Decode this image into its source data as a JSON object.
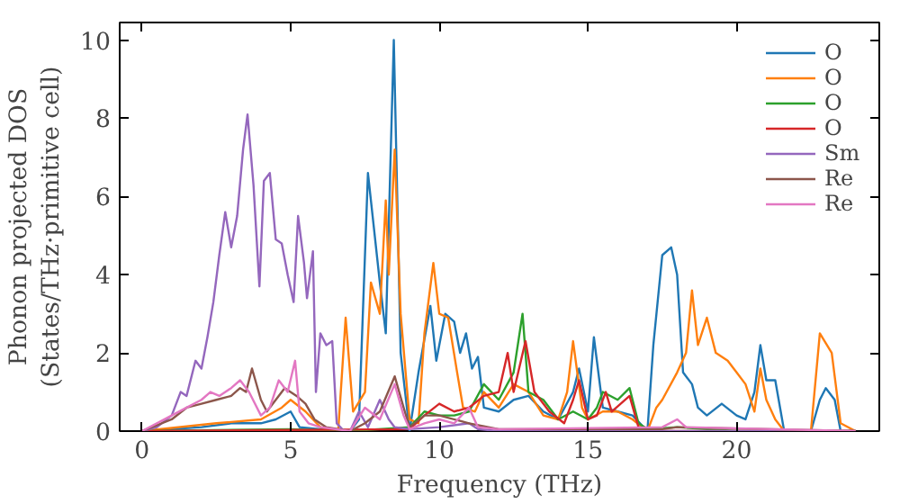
{
  "chart_data": {
    "type": "line",
    "xlabel": "Frequency (THz)",
    "ylabel": "Phonon projected DOS\n(States/THz·primitive cell)",
    "xlim": [
      -0.75,
      24.8
    ],
    "ylim": [
      0,
      10.45
    ],
    "xticks": [
      0,
      5,
      10,
      15,
      20
    ],
    "yticks": [
      0,
      2,
      4,
      6,
      8,
      10
    ],
    "grid": false,
    "legend": "top right",
    "series": [
      {
        "name": "O",
        "color": "#1f77b4",
        "x": [
          0,
          2,
          3,
          4,
          4.5,
          5,
          5.3,
          6,
          7,
          7.3,
          7.6,
          8,
          8.2,
          8.47,
          8.7,
          9.0,
          9.3,
          9.7,
          9.9,
          10.2,
          10.5,
          10.7,
          10.9,
          11.1,
          11.3,
          11.5,
          12,
          12.5,
          13,
          13.5,
          14,
          14.5,
          14.7,
          15,
          15.2,
          15.5,
          16,
          16.5,
          17,
          17.2,
          17.5,
          17.8,
          18,
          18.2,
          18.5,
          18.7,
          19,
          19.5,
          20,
          20.3,
          20.6,
          20.8,
          21,
          21.3,
          21.6,
          22.5,
          22.8,
          23,
          23.3,
          23.5,
          24
        ],
        "values": [
          0,
          0.1,
          0.2,
          0.2,
          0.3,
          0.5,
          0.1,
          0.05,
          0,
          0.3,
          6.6,
          3.8,
          2.5,
          10.0,
          2.0,
          0,
          1.5,
          3.2,
          1.8,
          3.0,
          2.8,
          2.0,
          2.5,
          1.6,
          1.9,
          0.6,
          0.5,
          0.8,
          0.9,
          0.5,
          0.3,
          1.0,
          1.6,
          0.5,
          2.4,
          0.6,
          0.5,
          0.4,
          0,
          2.2,
          4.5,
          4.7,
          4.0,
          1.5,
          1.2,
          0.6,
          0.4,
          0.7,
          0.4,
          0.3,
          1.0,
          2.2,
          1.3,
          1.3,
          0,
          0,
          0.8,
          1.1,
          0.8,
          0,
          0
        ]
      },
      {
        "name": "O",
        "color": "#ff7f0e",
        "x": [
          0,
          2.5,
          4,
          4.7,
          5,
          5.5,
          6,
          6.6,
          6.85,
          7.1,
          7.5,
          7.7,
          8.0,
          8.2,
          8.3,
          8.5,
          8.7,
          9.0,
          9.3,
          9.5,
          9.8,
          10.0,
          10.3,
          10.6,
          10.8,
          11.2,
          11.5,
          12,
          12.5,
          13,
          13.5,
          14,
          14.3,
          14.5,
          14.8,
          15,
          15.5,
          16,
          16.5,
          17,
          17.3,
          17.5,
          18,
          18.3,
          18.5,
          18.7,
          19,
          19.3,
          19.7,
          20,
          20.3,
          20.6,
          20.8,
          21,
          21.3,
          21.6,
          22.5,
          22.8,
          23.2,
          23.5,
          24
        ],
        "values": [
          0,
          0.2,
          0.3,
          0.6,
          0.8,
          0.5,
          0.1,
          0,
          2.9,
          0.5,
          1.0,
          3.8,
          3.0,
          5.9,
          4.0,
          7.2,
          3.0,
          0.3,
          0.2,
          2.5,
          4.3,
          3.0,
          2.9,
          1.5,
          0.6,
          0.5,
          1.0,
          0.6,
          1.2,
          1.0,
          0.4,
          0.3,
          1.0,
          2.3,
          0.6,
          0.3,
          0.5,
          0.5,
          0.3,
          0,
          0.6,
          0.8,
          1.5,
          2.0,
          3.6,
          2.2,
          2.9,
          2.0,
          1.8,
          1.5,
          1.2,
          0.5,
          1.6,
          0.8,
          0.3,
          0,
          0,
          2.5,
          2.0,
          0.2,
          0
        ]
      },
      {
        "name": "O",
        "color": "#2ca02c",
        "x": [
          0,
          5,
          7,
          9,
          9.5,
          10,
          10.5,
          11,
          11.5,
          12,
          12.5,
          12.8,
          13,
          13.5,
          14,
          14.5,
          15,
          15.3,
          15.5,
          16,
          16.4,
          16.7,
          17,
          18,
          19,
          20,
          24
        ],
        "values": [
          0,
          0.05,
          0,
          0.1,
          0.5,
          0.4,
          0.4,
          0.5,
          1.2,
          0.8,
          1.5,
          3.0,
          1.0,
          0.8,
          0.3,
          0.5,
          0.3,
          0.6,
          1.0,
          0.8,
          1.1,
          0.2,
          0.05,
          0.1,
          0.05,
          0,
          0
        ]
      },
      {
        "name": "O",
        "color": "#d62728",
        "x": [
          0,
          9,
          9.5,
          10,
          10.5,
          11,
          11.5,
          12,
          12.3,
          12.5,
          12.9,
          13.2,
          13.7,
          14.2,
          14.5,
          14.7,
          15,
          15.3,
          15.6,
          15.8,
          16.4,
          16.7,
          17,
          24
        ],
        "values": [
          0,
          0.05,
          0.4,
          0.7,
          0.5,
          0.6,
          0.9,
          1.0,
          2.0,
          1.0,
          2.3,
          1.0,
          0.5,
          0.2,
          0.8,
          1.3,
          0.3,
          0.4,
          1.0,
          0.5,
          0.9,
          0.1,
          0,
          0
        ]
      },
      {
        "name": "Sm",
        "color": "#9467bd",
        "x": [
          0,
          0.5,
          1,
          1.3,
          1.5,
          1.8,
          2.0,
          2.2,
          2.4,
          2.6,
          2.8,
          3.0,
          3.2,
          3.4,
          3.55,
          3.75,
          3.95,
          4.1,
          4.3,
          4.5,
          4.7,
          4.9,
          5.1,
          5.25,
          5.45,
          5.55,
          5.75,
          5.85,
          6.0,
          6.2,
          6.4,
          6.55,
          6.8,
          7.0,
          7.3,
          7.6,
          8.0,
          8.3,
          8.5,
          9,
          10,
          11,
          11.3,
          12,
          24
        ],
        "values": [
          0,
          0.1,
          0.4,
          1.0,
          0.9,
          1.8,
          1.6,
          2.4,
          3.3,
          4.5,
          5.6,
          4.7,
          5.5,
          7.2,
          8.1,
          6.3,
          3.7,
          6.4,
          6.6,
          4.9,
          4.8,
          4.0,
          3.3,
          5.5,
          4.3,
          3.4,
          4.6,
          1.0,
          2.5,
          2.2,
          2.3,
          0.2,
          0,
          0,
          0.5,
          0.1,
          0.8,
          0.3,
          0.1,
          0.05,
          0.1,
          0.2,
          0.05,
          0,
          0
        ]
      },
      {
        "name": "Re",
        "color": "#8c564b",
        "x": [
          0,
          1,
          1.5,
          2,
          2.5,
          3,
          3.3,
          3.5,
          3.7,
          4,
          4.2,
          4.5,
          4.8,
          5.2,
          5.5,
          5.8,
          6.2,
          7,
          7.5,
          8,
          8.5,
          8.8,
          9,
          9.5,
          10,
          11,
          12,
          17.5,
          18,
          24
        ],
        "values": [
          0,
          0.3,
          0.6,
          0.7,
          0.8,
          0.9,
          1.1,
          1.0,
          1.6,
          0.8,
          0.5,
          0.8,
          1.1,
          0.9,
          0.7,
          0.3,
          0.1,
          0,
          0.2,
          0.5,
          1.4,
          0.6,
          0.1,
          0.4,
          0.4,
          0.2,
          0.05,
          0.05,
          0.1,
          0
        ]
      },
      {
        "name": "Re",
        "color": "#e377c2",
        "x": [
          0,
          1,
          1.5,
          2,
          2.3,
          2.6,
          3,
          3.3,
          3.6,
          4,
          4.3,
          4.6,
          4.9,
          5.15,
          5.3,
          5.6,
          6,
          7,
          7.5,
          8,
          8.5,
          8.8,
          9,
          9.5,
          10,
          10.5,
          11,
          11.3,
          12,
          17.5,
          18,
          18.3,
          24
        ],
        "values": [
          0,
          0.4,
          0.6,
          0.8,
          1.0,
          0.9,
          1.1,
          1.3,
          1.0,
          0.4,
          0.6,
          1.3,
          1.0,
          1.8,
          0.5,
          0.2,
          0.1,
          0,
          0.6,
          0.3,
          1.2,
          0.4,
          0.05,
          0.2,
          0.3,
          0.2,
          0.6,
          0.1,
          0.05,
          0.1,
          0.3,
          0.1,
          0
        ]
      }
    ]
  }
}
